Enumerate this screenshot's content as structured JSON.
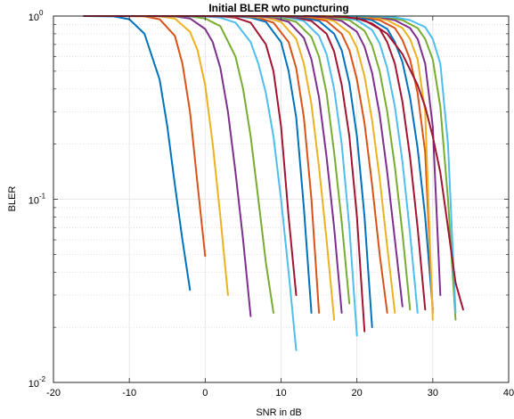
{
  "chart_data": {
    "type": "line",
    "title": "Initial BLER wto puncturing",
    "xlabel": "SNR in dB",
    "ylabel": "BLER",
    "xlim": [
      -20,
      40
    ],
    "ylim": [
      0.01,
      1
    ],
    "yscale": "log",
    "x_ticks": [
      -20,
      -10,
      0,
      10,
      20,
      30,
      40
    ],
    "x_tick_labels": [
      "-20",
      "-10",
      "0",
      "10",
      "20",
      "30",
      "40"
    ],
    "y_ticks": [
      {
        "value": 0.01,
        "base": "10",
        "exp": "-2"
      },
      {
        "value": 0.1,
        "base": "10",
        "exp": "-1"
      },
      {
        "value": 1,
        "base": "10",
        "exp": "0"
      }
    ],
    "grid": true,
    "series": [
      {
        "color": "#0072BD",
        "x": [
          -16,
          -12,
          -10,
          -8,
          -6,
          -5,
          -4,
          -3,
          -2
        ],
        "y": [
          1,
          0.995,
          0.96,
          0.8,
          0.45,
          0.25,
          0.12,
          0.06,
          0.032
        ]
      },
      {
        "color": "#D95319",
        "x": [
          -12,
          -8,
          -6,
          -4,
          -3,
          -2,
          -1,
          0
        ],
        "y": [
          1,
          0.995,
          0.96,
          0.78,
          0.55,
          0.3,
          0.12,
          0.049
        ]
      },
      {
        "color": "#EDB120",
        "x": [
          -10,
          -6,
          -4,
          -2,
          -1,
          0,
          1,
          2,
          3
        ],
        "y": [
          1,
          0.995,
          0.97,
          0.82,
          0.65,
          0.42,
          0.2,
          0.08,
          0.03
        ]
      },
      {
        "color": "#7E2F8E",
        "x": [
          -8,
          -4,
          -2,
          0,
          1,
          2,
          3,
          4,
          5,
          6
        ],
        "y": [
          1,
          0.995,
          0.97,
          0.85,
          0.72,
          0.52,
          0.3,
          0.14,
          0.06,
          0.023
        ]
      },
      {
        "color": "#77AC30",
        "x": [
          -6,
          -2,
          0,
          2,
          4,
          5,
          6,
          7,
          8,
          9
        ],
        "y": [
          1,
          0.995,
          0.97,
          0.88,
          0.6,
          0.4,
          0.22,
          0.1,
          0.045,
          0.024
        ]
      },
      {
        "color": "#4DBEEE",
        "x": [
          -4,
          0,
          2,
          4,
          6,
          7,
          8,
          9,
          10,
          11,
          12
        ],
        "y": [
          1,
          0.995,
          0.98,
          0.92,
          0.72,
          0.55,
          0.38,
          0.22,
          0.1,
          0.04,
          0.015
        ]
      },
      {
        "color": "#A2142F",
        "x": [
          -2,
          2,
          4,
          6,
          8,
          9,
          10,
          11,
          12
        ],
        "y": [
          1,
          0.995,
          0.98,
          0.92,
          0.7,
          0.5,
          0.25,
          0.08,
          0.03
        ]
      },
      {
        "color": "#0072BD",
        "x": [
          0,
          4,
          6,
          8,
          10,
          11,
          12,
          13,
          14
        ],
        "y": [
          1,
          0.995,
          0.98,
          0.93,
          0.72,
          0.5,
          0.28,
          0.09,
          0.024
        ]
      },
      {
        "color": "#D95319",
        "x": [
          1,
          5,
          7,
          9,
          11,
          12,
          13,
          14,
          15
        ],
        "y": [
          1,
          0.995,
          0.98,
          0.92,
          0.72,
          0.52,
          0.28,
          0.1,
          0.024
        ]
      },
      {
        "color": "#EDB120",
        "x": [
          2,
          6,
          8,
          10,
          12,
          13,
          14,
          15,
          16,
          17
        ],
        "y": [
          1,
          0.995,
          0.98,
          0.93,
          0.75,
          0.55,
          0.33,
          0.15,
          0.06,
          0.022
        ]
      },
      {
        "color": "#7E2F8E",
        "x": [
          3,
          7,
          9,
          11,
          13,
          14,
          15,
          16,
          17,
          18
        ],
        "y": [
          1,
          0.995,
          0.98,
          0.93,
          0.76,
          0.58,
          0.36,
          0.17,
          0.07,
          0.024
        ]
      },
      {
        "color": "#77AC30",
        "x": [
          4,
          8,
          10,
          12,
          14,
          15,
          16,
          17,
          18,
          19
        ],
        "y": [
          1,
          0.995,
          0.98,
          0.93,
          0.77,
          0.6,
          0.38,
          0.18,
          0.075,
          0.027
        ]
      },
      {
        "color": "#4DBEEE",
        "x": [
          5,
          9,
          11,
          13,
          15,
          16,
          17,
          18,
          19,
          20
        ],
        "y": [
          1,
          0.995,
          0.98,
          0.94,
          0.78,
          0.62,
          0.4,
          0.2,
          0.07,
          0.018
        ]
      },
      {
        "color": "#A2142F",
        "x": [
          6,
          10,
          12,
          14,
          16,
          17,
          18,
          19,
          20,
          21
        ],
        "y": [
          1,
          0.995,
          0.98,
          0.94,
          0.8,
          0.64,
          0.42,
          0.22,
          0.08,
          0.019
        ]
      },
      {
        "color": "#0072BD",
        "x": [
          7,
          11,
          13,
          15,
          17,
          18,
          19,
          20,
          21,
          22
        ],
        "y": [
          1,
          0.995,
          0.98,
          0.94,
          0.8,
          0.65,
          0.43,
          0.22,
          0.08,
          0.02
        ]
      },
      {
        "color": "#D95319",
        "x": [
          8,
          12,
          14,
          16,
          18,
          19,
          20,
          21,
          22,
          23,
          24
        ],
        "y": [
          1,
          0.995,
          0.98,
          0.94,
          0.8,
          0.65,
          0.45,
          0.26,
          0.12,
          0.05,
          0.024
        ]
      },
      {
        "color": "#EDB120",
        "x": [
          9,
          13,
          15,
          17,
          19,
          20,
          21,
          22,
          23,
          24,
          25
        ],
        "y": [
          1,
          0.995,
          0.98,
          0.94,
          0.81,
          0.67,
          0.47,
          0.27,
          0.13,
          0.055,
          0.024
        ]
      },
      {
        "color": "#7E2F8E",
        "x": [
          10,
          14,
          16,
          18,
          20,
          21,
          22,
          23,
          24,
          25,
          26
        ],
        "y": [
          1,
          0.995,
          0.98,
          0.94,
          0.82,
          0.68,
          0.49,
          0.29,
          0.14,
          0.06,
          0.026
        ]
      },
      {
        "color": "#77AC30",
        "x": [
          11,
          15,
          17,
          19,
          21,
          22,
          23,
          24,
          25,
          26,
          27
        ],
        "y": [
          1,
          0.995,
          0.98,
          0.95,
          0.83,
          0.69,
          0.5,
          0.3,
          0.15,
          0.065,
          0.025
        ]
      },
      {
        "color": "#4DBEEE",
        "x": [
          12,
          16,
          18,
          20,
          22,
          23,
          24,
          25,
          26,
          27,
          28
        ],
        "y": [
          1,
          0.995,
          0.985,
          0.95,
          0.84,
          0.71,
          0.52,
          0.32,
          0.16,
          0.065,
          0.024
        ]
      },
      {
        "color": "#A2142F",
        "x": [
          13,
          17,
          19,
          21,
          23,
          24,
          25,
          26,
          27,
          28,
          29
        ],
        "y": [
          1,
          0.995,
          0.985,
          0.95,
          0.85,
          0.72,
          0.55,
          0.34,
          0.17,
          0.07,
          0.025
        ]
      },
      {
        "color": "#0072BD",
        "x": [
          14,
          18,
          20,
          22,
          24,
          25,
          26,
          27,
          28,
          29,
          30
        ],
        "y": [
          1,
          0.995,
          0.985,
          0.95,
          0.85,
          0.72,
          0.56,
          0.36,
          0.19,
          0.08,
          0.025
        ]
      },
      {
        "color": "#D95319",
        "x": [
          15,
          19,
          21,
          23,
          25,
          26,
          27,
          28,
          29,
          30
        ],
        "y": [
          1,
          0.995,
          0.985,
          0.95,
          0.86,
          0.74,
          0.58,
          0.38,
          0.18,
          0.024
        ]
      },
      {
        "color": "#EDB120",
        "x": [
          16,
          20,
          22,
          24,
          26,
          27,
          28,
          29,
          30
        ],
        "y": [
          1,
          0.995,
          0.985,
          0.95,
          0.86,
          0.75,
          0.58,
          0.3,
          0.022
        ]
      },
      {
        "color": "#7E2F8E",
        "x": [
          17,
          21,
          23,
          25,
          27,
          28,
          29,
          30,
          31
        ],
        "y": [
          1,
          0.995,
          0.985,
          0.95,
          0.86,
          0.75,
          0.55,
          0.25,
          0.03
        ]
      },
      {
        "color": "#77AC30",
        "x": [
          18,
          22,
          24,
          26,
          28,
          29,
          30,
          31,
          32,
          33
        ],
        "y": [
          1,
          0.995,
          0.985,
          0.95,
          0.86,
          0.75,
          0.58,
          0.32,
          0.1,
          0.022
        ]
      },
      {
        "color": "#4DBEEE",
        "x": [
          19,
          23,
          25,
          27,
          29,
          30,
          31,
          32,
          33
        ],
        "y": [
          1,
          0.995,
          0.985,
          0.95,
          0.87,
          0.75,
          0.55,
          0.2,
          0.024
        ]
      },
      {
        "color": "#A2142F",
        "x": [
          -16,
          -10,
          0,
          10,
          18,
          20,
          22,
          24,
          26,
          28,
          29,
          30,
          31,
          32,
          33,
          34
        ],
        "y": [
          1,
          1,
          1,
          1,
          0.99,
          0.97,
          0.91,
          0.8,
          0.62,
          0.42,
          0.32,
          0.22,
          0.14,
          0.07,
          0.035,
          0.025
        ]
      }
    ]
  }
}
